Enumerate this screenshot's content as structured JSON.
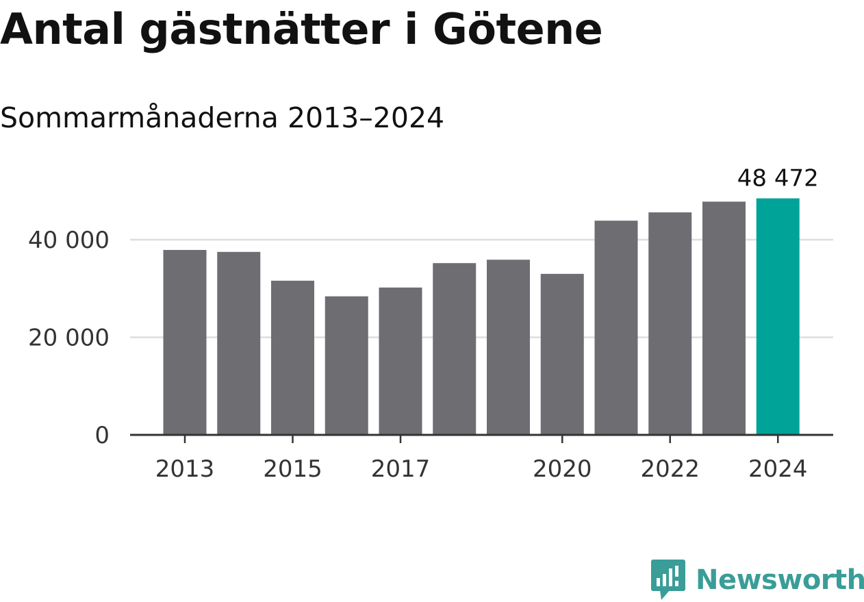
{
  "title": "Antal gästnätter i Götene",
  "subtitle": "Sommarmånaderna 2013–2024",
  "brand": {
    "name": "Newsworthy",
    "color": "#3a9d97",
    "icon": "chart-bubble-icon"
  },
  "colors": {
    "bar": "#6e6d72",
    "highlight": "#00a398",
    "grid": "#dddddd",
    "axis": "#333333"
  },
  "chart_data": {
    "type": "bar",
    "title": "Antal gästnätter i Götene",
    "subtitle": "Sommarmånaderna 2013–2024",
    "categories": [
      "2013",
      "2014",
      "2015",
      "2016",
      "2017",
      "2018",
      "2019",
      "2020",
      "2021",
      "2022",
      "2023",
      "2024"
    ],
    "values": [
      37900,
      37500,
      31600,
      28400,
      30200,
      35200,
      35900,
      33000,
      43900,
      45600,
      47800,
      48472
    ],
    "highlight_index": 11,
    "highlight_label": "48 472",
    "x_tick_labels": [
      "2013",
      "2015",
      "2017",
      "2020",
      "2022",
      "2024"
    ],
    "y_ticks": [
      0,
      20000,
      40000
    ],
    "y_tick_labels": [
      "0",
      "20 000",
      "40 000"
    ],
    "ylim": [
      0,
      50000
    ],
    "grid": true,
    "xlabel": "",
    "ylabel": ""
  }
}
